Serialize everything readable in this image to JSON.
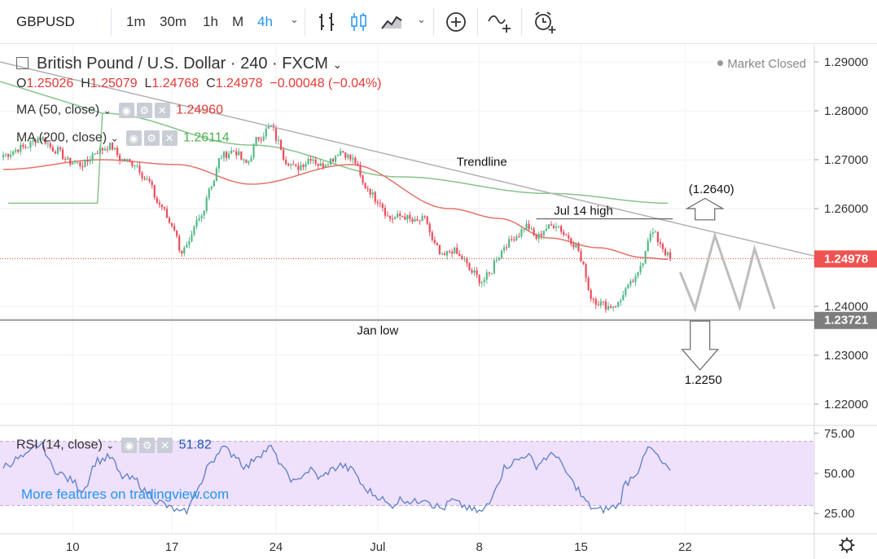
{
  "toolbar": {
    "symbol": "GBPUSD",
    "intervals": [
      "1m",
      "30m",
      "1h",
      "M",
      "4h"
    ],
    "active_interval": "4h",
    "icons": [
      "bar-chart-icon",
      "candles-icon",
      "area-chart-icon",
      "add-compare-icon",
      "indicators-icon",
      "alert-icon"
    ]
  },
  "header": {
    "title": "British Pound / U.S. Dollar · 240 · FXCM",
    "market_status": "Market Closed",
    "ohlc": {
      "o_label": "O",
      "o": "1.25026",
      "h_label": "H",
      "h": "1.25079",
      "l_label": "L",
      "l": "1.24768",
      "c_label": "C",
      "c": "1.24978",
      "change": "−0.00048 (−0.04%)"
    },
    "ma50": {
      "label": "MA (50, close)",
      "value": "1.24960",
      "color": "#e57368"
    },
    "ma200": {
      "label": "MA (200, close)",
      "value": "1.26114",
      "color": "#86c48a"
    }
  },
  "rsi": {
    "label": "RSI (14, close)",
    "value": "51.82",
    "line_color": "#5b7fc8",
    "band_color": "#efe0fb"
  },
  "promo": "More features on tradingview.com",
  "colors": {
    "up": "#53b987",
    "down": "#eb4d5c",
    "trendline": "#b0b0b0"
  },
  "chart_data": {
    "type": "candlestick",
    "symbol": "GBPUSD",
    "timeframe": "240",
    "x_ticks": [
      "10",
      "17",
      "24",
      "Jul",
      "8",
      "15",
      "22"
    ],
    "price_ticks": [
      "1.29000",
      "1.28000",
      "1.27000",
      "1.26000",
      "1.24000",
      "1.23000",
      "1.22000"
    ],
    "ylim": [
      1.216,
      1.2935
    ],
    "last_price": "1.24978",
    "last_price_value": 1.24978,
    "jan_low_tag": "1.23721",
    "jan_low_value": 1.23721,
    "rsi_ticks": [
      "75.00",
      "50.00",
      "25.00"
    ],
    "rsi_band": [
      30,
      70
    ],
    "annotations": {
      "trendline": "Trendline",
      "jul14_high": "Jul 14 high",
      "target_up": "(1.2640)",
      "jan_low": "Jan low",
      "target_down": "1.2250"
    },
    "jul14_high_value": 1.2579,
    "forecast_zigzag": [
      1.247,
      1.2395,
      1.2545,
      1.2398,
      1.2518,
      1.2395
    ],
    "anchors": [
      [
        0,
        1.271
      ],
      [
        8,
        1.2725
      ],
      [
        15,
        1.2745
      ],
      [
        21,
        1.272
      ],
      [
        27,
        1.2695
      ],
      [
        32,
        1.269
      ],
      [
        38,
        1.2718
      ],
      [
        43,
        1.2728
      ],
      [
        48,
        1.27
      ],
      [
        53,
        1.2692
      ],
      [
        58,
        1.2658
      ],
      [
        63,
        1.2608
      ],
      [
        68,
        1.2568
      ],
      [
        72,
        1.2512
      ],
      [
        74,
        1.252
      ],
      [
        79,
        1.2578
      ],
      [
        84,
        1.265
      ],
      [
        88,
        1.2708
      ],
      [
        93,
        1.2718
      ],
      [
        98,
        1.2692
      ],
      [
        103,
        1.2745
      ],
      [
        108,
        1.2768
      ],
      [
        111,
        1.2735
      ],
      [
        114,
        1.2698
      ],
      [
        118,
        1.2682
      ],
      [
        121,
        1.2692
      ],
      [
        124,
        1.2705
      ],
      [
        128,
        1.2688
      ],
      [
        132,
        1.27
      ],
      [
        136,
        1.2718
      ],
      [
        141,
        1.27
      ],
      [
        146,
        1.2645
      ],
      [
        151,
        1.2618
      ],
      [
        156,
        1.258
      ],
      [
        161,
        1.2585
      ],
      [
        166,
        1.2572
      ],
      [
        170,
        1.2578
      ],
      [
        174,
        1.2525
      ],
      [
        177,
        1.25
      ],
      [
        181,
        1.2515
      ],
      [
        185,
        1.2498
      ],
      [
        189,
        1.247
      ],
      [
        193,
        1.2452
      ],
      [
        196,
        1.2465
      ],
      [
        199,
        1.25
      ],
      [
        203,
        1.2528
      ],
      [
        207,
        1.2545
      ],
      [
        211,
        1.2565
      ],
      [
        215,
        1.254
      ],
      [
        219,
        1.256
      ],
      [
        223,
        1.2568
      ],
      [
        227,
        1.2545
      ],
      [
        231,
        1.2525
      ],
      [
        234,
        1.248
      ],
      [
        237,
        1.242
      ],
      [
        240,
        1.2408
      ],
      [
        244,
        1.24
      ],
      [
        248,
        1.2405
      ],
      [
        251,
        1.2435
      ],
      [
        255,
        1.2455
      ],
      [
        258,
        1.2495
      ],
      [
        260,
        1.254
      ],
      [
        262,
        1.255
      ],
      [
        265,
        1.253
      ],
      [
        267,
        1.251
      ],
      [
        269,
        1.2498
      ]
    ],
    "ma50": [
      [
        0,
        1.268
      ],
      [
        40,
        1.27
      ],
      [
        70,
        1.269
      ],
      [
        100,
        1.265
      ],
      [
        140,
        1.269
      ],
      [
        180,
        1.26
      ],
      [
        200,
        1.258
      ],
      [
        220,
        1.254
      ],
      [
        240,
        1.252
      ],
      [
        258,
        1.25
      ],
      [
        269,
        1.2496
      ]
    ],
    "ma200": [
      [
        40,
        1.2795
      ],
      [
        100,
        1.273
      ],
      [
        160,
        1.2665
      ],
      [
        220,
        1.2631
      ],
      [
        269,
        1.2611
      ]
    ],
    "rsi_series": [
      [
        0,
        55
      ],
      [
        8,
        60
      ],
      [
        15,
        68
      ],
      [
        21,
        52
      ],
      [
        27,
        46
      ],
      [
        32,
        40
      ],
      [
        38,
        58
      ],
      [
        43,
        60
      ],
      [
        48,
        48
      ],
      [
        53,
        46
      ],
      [
        58,
        38
      ],
      [
        63,
        32
      ],
      [
        68,
        28
      ],
      [
        72,
        25
      ],
      [
        74,
        27
      ],
      [
        79,
        42
      ],
      [
        84,
        58
      ],
      [
        88,
        66
      ],
      [
        93,
        62
      ],
      [
        98,
        54
      ],
      [
        103,
        62
      ],
      [
        108,
        66
      ],
      [
        111,
        58
      ],
      [
        114,
        50
      ],
      [
        118,
        44
      ],
      [
        121,
        50
      ],
      [
        124,
        52
      ],
      [
        128,
        47
      ],
      [
        132,
        52
      ],
      [
        136,
        55
      ],
      [
        141,
        52
      ],
      [
        146,
        40
      ],
      [
        151,
        36
      ],
      [
        156,
        30
      ],
      [
        161,
        34
      ],
      [
        166,
        32
      ],
      [
        170,
        35
      ],
      [
        174,
        30
      ],
      [
        177,
        28
      ],
      [
        181,
        33
      ],
      [
        185,
        30
      ],
      [
        189,
        27
      ],
      [
        193,
        26
      ],
      [
        196,
        31
      ],
      [
        199,
        44
      ],
      [
        203,
        55
      ],
      [
        207,
        58
      ],
      [
        211,
        62
      ],
      [
        215,
        55
      ],
      [
        219,
        60
      ],
      [
        223,
        62
      ],
      [
        227,
        50
      ],
      [
        231,
        42
      ],
      [
        234,
        34
      ],
      [
        237,
        29
      ],
      [
        240,
        27
      ],
      [
        244,
        28
      ],
      [
        248,
        30
      ],
      [
        251,
        44
      ],
      [
        255,
        50
      ],
      [
        258,
        58
      ],
      [
        260,
        66
      ],
      [
        262,
        64
      ],
      [
        265,
        58
      ],
      [
        267,
        54
      ],
      [
        269,
        51.82
      ]
    ]
  }
}
